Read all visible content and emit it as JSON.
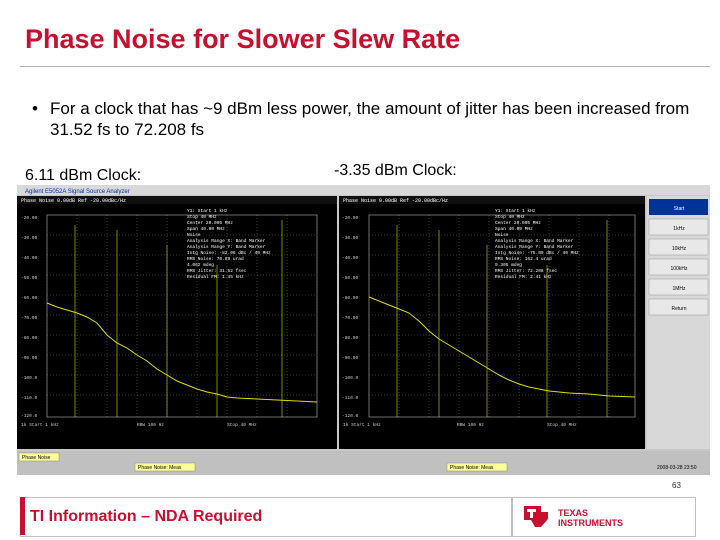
{
  "slide": {
    "title": "Phase Noise for Slower Slew Rate",
    "bullet": "For a clock that has ~9 dBm less power, the amount of jitter has been increased from 31.52 fs to 72.208 fs",
    "caption_left": "6.11 dBm Clock:",
    "caption_right": "-3.35 dBm Clock:",
    "page_number": "63",
    "footer": "TI Information – NDA Required",
    "logo_line1": "TEXAS",
    "logo_line2": "INSTRUMENTS"
  },
  "analyzer": {
    "title_bar": "Agilent E5052A Signal Source Analyzer",
    "menu_items": [
      "Start",
      "1kHz",
      "10kHz",
      "100kHz",
      "1MHz",
      "Return"
    ],
    "bottom_left": "Phase Noise",
    "bottom_right": "Phase Noise: Meas",
    "date": "2008-03-28 23:50",
    "trace_color": "#dddd00",
    "screen_bg": "#000000"
  }
}
